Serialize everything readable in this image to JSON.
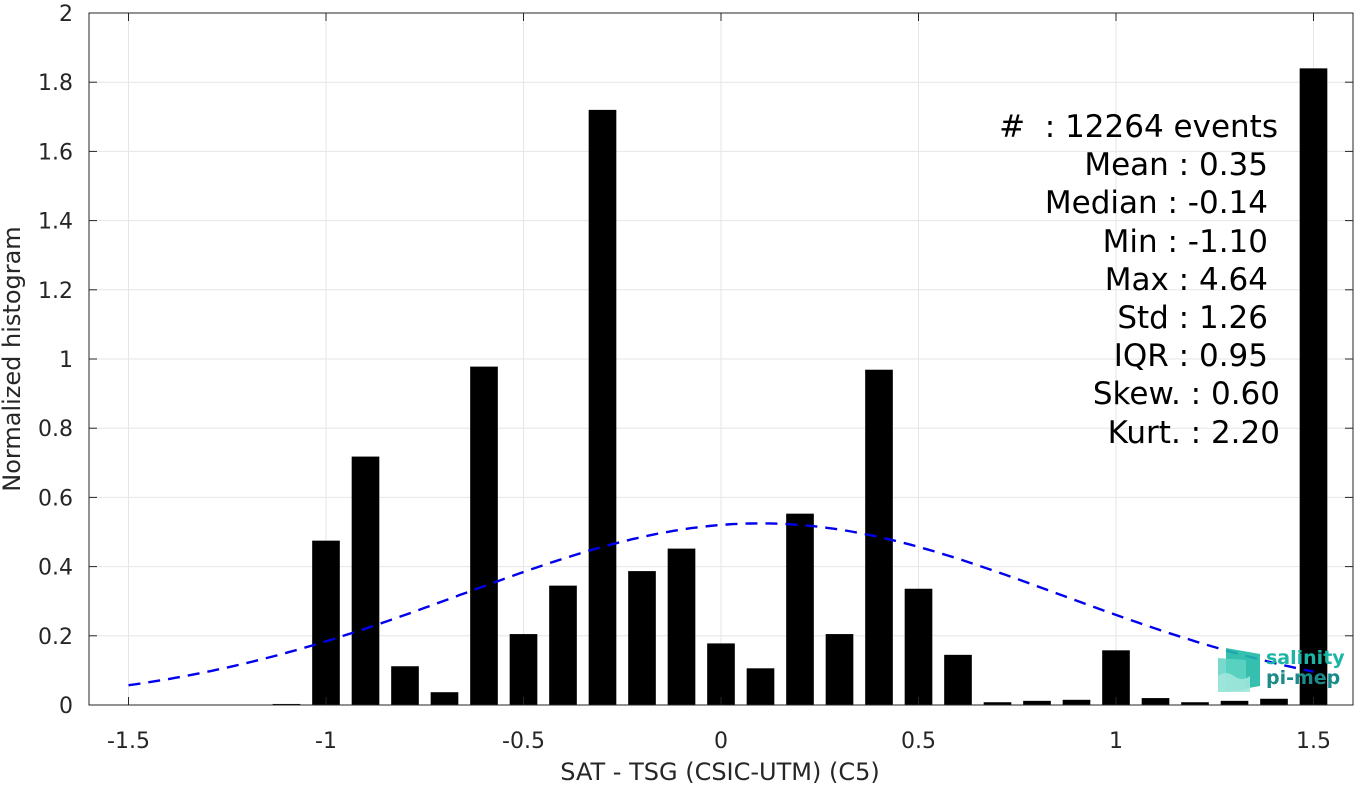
{
  "chart_data": {
    "type": "bar",
    "xlabel": "SAT - TSG (CSIC-UTM) (C5)",
    "ylabel": "Normalized histogram",
    "xlim": [
      -1.6,
      1.6
    ],
    "ylim": [
      0,
      2
    ],
    "xticks": [
      -1.5,
      -1,
      -0.5,
      0,
      0.5,
      1,
      1.5
    ],
    "xtick_labels": [
      "-1.5",
      "-1",
      "-0.5",
      "0",
      "0.5",
      "1",
      "1.5"
    ],
    "yticks": [
      0,
      0.2,
      0.4,
      0.6,
      0.8,
      1,
      1.2,
      1.4,
      1.6,
      1.8,
      2
    ],
    "ytick_labels": [
      "0",
      "0.2",
      "0.4",
      "0.6",
      "0.8",
      "1",
      "1.2",
      "1.4",
      "1.6",
      "1.8",
      "2"
    ],
    "grid": true,
    "bar_color": "#000000",
    "bar_width": 0.07,
    "x": [
      -1.5,
      -1.4,
      -1.3,
      -1.2,
      -1.1,
      -1.0,
      -0.9,
      -0.8,
      -0.7,
      -0.6,
      -0.5,
      -0.4,
      -0.3,
      -0.2,
      -0.1,
      0.0,
      0.1,
      0.2,
      0.3,
      0.4,
      0.5,
      0.6,
      0.7,
      0.8,
      0.9,
      1.0,
      1.1,
      1.2,
      1.3,
      1.4,
      1.5
    ],
    "values": [
      0,
      0,
      0,
      0,
      0.003,
      0.475,
      0.718,
      0.112,
      0.037,
      0.978,
      0.205,
      0.345,
      1.72,
      0.387,
      0.452,
      0.178,
      0.106,
      0.553,
      0.205,
      0.969,
      0.336,
      0.145,
      0.008,
      0.012,
      0.015,
      0.158,
      0.02,
      0.008,
      0.012,
      0.018,
      1.84
    ],
    "fit_curve": {
      "type": "normal",
      "mean": 0.1,
      "std": 0.76,
      "x_start": -1.5,
      "x_end": 1.5,
      "color": "#0000ee",
      "style": "dashed"
    },
    "stats": {
      "count_line": "#  : 12264 events",
      "mean_line": "Mean : 0.35",
      "median_line": "Median : -0.14",
      "min_line": "Min : -1.10",
      "max_line": "Max : 4.64",
      "std_line": "Std : 1.26",
      "iqr_line": "IQR : 0.95",
      "skew_line": "Skew. : 0.60",
      "kurt_line": "Kurt. : 2.20"
    }
  },
  "logo": {
    "line1": "salinity",
    "line2": "pi-mep"
  }
}
